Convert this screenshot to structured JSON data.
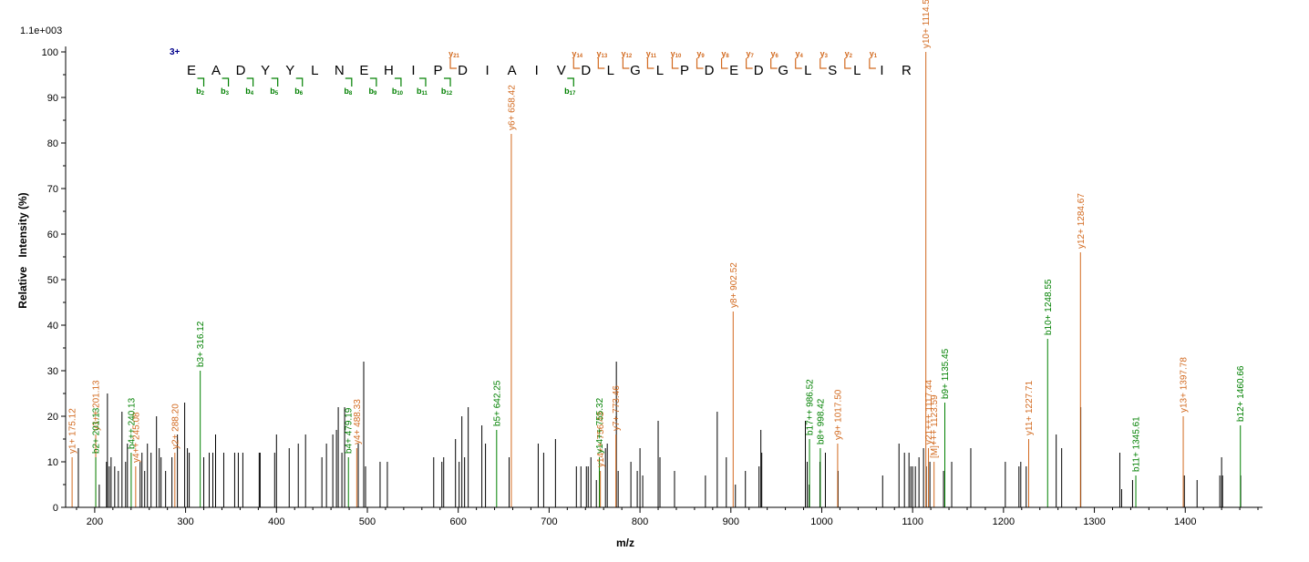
{
  "chart_data": {
    "type": "bar",
    "subtype": "mass-spectrum",
    "xlabel": "m/z",
    "ylabel": "Relative   Intensity (%)",
    "intensity_scale": "1.1e+003",
    "xlim": [
      168,
      1485
    ],
    "ylim": [
      0,
      100
    ],
    "x_ticks": [
      200,
      300,
      400,
      500,
      600,
      700,
      800,
      900,
      1000,
      1100,
      1200,
      1300,
      1400
    ],
    "y_ticks": [
      0,
      10,
      20,
      30,
      40,
      50,
      60,
      70,
      80,
      90,
      100
    ],
    "colors": {
      "y_ion": "#d2691e",
      "b_ion": "#008000",
      "unassigned": "#000000",
      "charge": "#00008b"
    },
    "sequence": [
      "E",
      "A",
      "D",
      "Y",
      "Y",
      "L",
      "N",
      "E",
      "H",
      "I",
      "P",
      "D",
      "I",
      "A",
      "I",
      "V",
      "D",
      "L",
      "G",
      "L",
      "P",
      "D",
      "E",
      "D",
      "G",
      "L",
      "S",
      "L",
      "I",
      "R"
    ],
    "charge_state": "3+",
    "y_ion_markers": [
      {
        "after": 11,
        "num": "21"
      },
      {
        "after": 16,
        "num": "14"
      },
      {
        "after": 17,
        "num": "13"
      },
      {
        "after": 18,
        "num": "12"
      },
      {
        "after": 19,
        "num": "11"
      },
      {
        "after": 20,
        "num": "10"
      },
      {
        "after": 21,
        "num": "9"
      },
      {
        "after": 22,
        "num": "8"
      },
      {
        "after": 23,
        "num": "7"
      },
      {
        "after": 24,
        "num": "6"
      },
      {
        "after": 25,
        "num": "4"
      },
      {
        "after": 26,
        "num": "3"
      },
      {
        "after": 27,
        "num": "2"
      },
      {
        "after": 28,
        "num": "1"
      }
    ],
    "b_ion_markers": [
      {
        "after": 1,
        "num": "2"
      },
      {
        "after": 2,
        "num": "3"
      },
      {
        "after": 3,
        "num": "4"
      },
      {
        "after": 4,
        "num": "5"
      },
      {
        "after": 5,
        "num": "6"
      },
      {
        "after": 7,
        "num": "8"
      },
      {
        "after": 8,
        "num": "9"
      },
      {
        "after": 9,
        "num": "10"
      },
      {
        "after": 10,
        "num": "11"
      },
      {
        "after": 11,
        "num": "12"
      },
      {
        "after": 16,
        "num": "17"
      }
    ],
    "peaks_y": [
      {
        "mz": 175.12,
        "i": 11,
        "label": "y1+ 175.12"
      },
      {
        "mz": 201.13,
        "i": 16,
        "label": "y3++ 201.13"
      },
      {
        "mz": 245.08,
        "i": 9,
        "label": "y4++ 245.08"
      },
      {
        "mz": 288.2,
        "i": 12,
        "label": "y2+ 288.20"
      },
      {
        "mz": 488.33,
        "i": 13,
        "label": "y4+ 488.33"
      },
      {
        "mz": 658.42,
        "i": 82,
        "label": "y6+ 658.42"
      },
      {
        "mz": 756.43,
        "i": 8,
        "label": "y14++ 756.43"
      },
      {
        "mz": 773.46,
        "i": 16,
        "label": "y7+ 773.46"
      },
      {
        "mz": 902.52,
        "i": 43,
        "label": "y8+ 902.52"
      },
      {
        "mz": 1017.5,
        "i": 14,
        "label": "y9+ 1017.50"
      },
      {
        "mz": 1114.56,
        "i": 100,
        "label": "y10+ 1114.56"
      },
      {
        "mz": 1117.44,
        "i": 13,
        "label": "y21+++ 1117.44"
      },
      {
        "mz": 1123.59,
        "i": 10,
        "label": "[M]+++ 1123.59"
      },
      {
        "mz": 1227.71,
        "i": 15,
        "label": "y11+ 1227.71"
      },
      {
        "mz": 1284.67,
        "i": 56,
        "label": "y12+ 1284.67"
      },
      {
        "mz": 1397.78,
        "i": 20,
        "label": "y13+ 1397.78"
      }
    ],
    "peaks_b": [
      {
        "mz": 201.13,
        "i": 11,
        "label": "b2+ 201.13"
      },
      {
        "mz": 240.13,
        "i": 12,
        "label": "b4++ 240.13"
      },
      {
        "mz": 316.12,
        "i": 30,
        "label": "b3+ 316.12"
      },
      {
        "mz": 479.19,
        "i": 11,
        "label": "b4+ 479.19"
      },
      {
        "mz": 642.25,
        "i": 17,
        "label": "b5+ 642.25"
      },
      {
        "mz": 755.32,
        "i": 11,
        "label": "y14++ 755.32"
      },
      {
        "mz": 986.52,
        "i": 15,
        "label": "b17++ 986.52"
      },
      {
        "mz": 998.42,
        "i": 13,
        "label": "b8+ 998.42"
      },
      {
        "mz": 1135.45,
        "i": 23,
        "label": "b9+ 1135.45"
      },
      {
        "mz": 1248.55,
        "i": 37,
        "label": "b10+ 1248.55"
      },
      {
        "mz": 1345.61,
        "i": 7,
        "label": "b11+ 1345.61"
      },
      {
        "mz": 1460.66,
        "i": 18,
        "label": "b12+ 1460.66"
      }
    ],
    "peaks_unassigned": [
      {
        "mz": 182,
        "i": 13
      },
      {
        "mz": 205,
        "i": 5
      },
      {
        "mz": 213,
        "i": 10
      },
      {
        "mz": 214,
        "i": 25
      },
      {
        "mz": 216,
        "i": 9
      },
      {
        "mz": 218,
        "i": 11
      },
      {
        "mz": 222,
        "i": 9
      },
      {
        "mz": 226,
        "i": 8
      },
      {
        "mz": 230,
        "i": 21
      },
      {
        "mz": 234,
        "i": 10
      },
      {
        "mz": 236,
        "i": 14
      },
      {
        "mz": 250,
        "i": 10
      },
      {
        "mz": 252,
        "i": 12
      },
      {
        "mz": 255,
        "i": 8
      },
      {
        "mz": 258,
        "i": 14
      },
      {
        "mz": 262,
        "i": 12
      },
      {
        "mz": 268,
        "i": 20
      },
      {
        "mz": 271,
        "i": 13
      },
      {
        "mz": 273,
        "i": 11
      },
      {
        "mz": 278,
        "i": 8
      },
      {
        "mz": 285,
        "i": 11
      },
      {
        "mz": 291,
        "i": 16
      },
      {
        "mz": 299,
        "i": 23
      },
      {
        "mz": 302,
        "i": 13
      },
      {
        "mz": 304,
        "i": 12
      },
      {
        "mz": 320,
        "i": 11
      },
      {
        "mz": 326,
        "i": 12
      },
      {
        "mz": 330,
        "i": 12
      },
      {
        "mz": 333,
        "i": 16
      },
      {
        "mz": 342,
        "i": 12
      },
      {
        "mz": 354,
        "i": 12
      },
      {
        "mz": 358,
        "i": 12
      },
      {
        "mz": 363,
        "i": 12
      },
      {
        "mz": 381,
        "i": 12
      },
      {
        "mz": 382,
        "i": 12
      },
      {
        "mz": 398,
        "i": 12
      },
      {
        "mz": 400,
        "i": 16
      },
      {
        "mz": 414,
        "i": 13
      },
      {
        "mz": 424,
        "i": 14
      },
      {
        "mz": 432,
        "i": 16
      },
      {
        "mz": 450,
        "i": 11
      },
      {
        "mz": 455,
        "i": 14
      },
      {
        "mz": 462,
        "i": 16
      },
      {
        "mz": 466,
        "i": 17
      },
      {
        "mz": 468,
        "i": 22
      },
      {
        "mz": 472,
        "i": 12
      },
      {
        "mz": 475,
        "i": 22
      },
      {
        "mz": 490,
        "i": 14
      },
      {
        "mz": 496,
        "i": 32
      },
      {
        "mz": 498,
        "i": 9
      },
      {
        "mz": 514,
        "i": 10
      },
      {
        "mz": 522,
        "i": 10
      },
      {
        "mz": 573,
        "i": 11
      },
      {
        "mz": 582,
        "i": 10
      },
      {
        "mz": 584,
        "i": 11
      },
      {
        "mz": 597,
        "i": 15
      },
      {
        "mz": 601,
        "i": 10
      },
      {
        "mz": 604,
        "i": 20
      },
      {
        "mz": 607,
        "i": 11
      },
      {
        "mz": 611,
        "i": 22
      },
      {
        "mz": 626,
        "i": 18
      },
      {
        "mz": 630,
        "i": 14
      },
      {
        "mz": 656,
        "i": 11
      },
      {
        "mz": 688,
        "i": 14
      },
      {
        "mz": 694,
        "i": 12
      },
      {
        "mz": 707,
        "i": 15
      },
      {
        "mz": 730,
        "i": 9
      },
      {
        "mz": 735,
        "i": 9
      },
      {
        "mz": 741,
        "i": 9
      },
      {
        "mz": 743,
        "i": 9
      },
      {
        "mz": 746,
        "i": 11
      },
      {
        "mz": 752,
        "i": 6
      },
      {
        "mz": 762,
        "i": 13
      },
      {
        "mz": 764,
        "i": 14
      },
      {
        "mz": 774,
        "i": 32
      },
      {
        "mz": 776,
        "i": 8
      },
      {
        "mz": 790,
        "i": 10
      },
      {
        "mz": 797,
        "i": 8
      },
      {
        "mz": 800,
        "i": 13
      },
      {
        "mz": 803,
        "i": 7
      },
      {
        "mz": 820,
        "i": 19
      },
      {
        "mz": 822,
        "i": 11
      },
      {
        "mz": 838,
        "i": 8
      },
      {
        "mz": 872,
        "i": 7
      },
      {
        "mz": 885,
        "i": 21
      },
      {
        "mz": 895,
        "i": 11
      },
      {
        "mz": 905,
        "i": 5
      },
      {
        "mz": 916,
        "i": 8
      },
      {
        "mz": 931,
        "i": 9
      },
      {
        "mz": 933,
        "i": 17
      },
      {
        "mz": 934,
        "i": 12
      },
      {
        "mz": 982,
        "i": 19
      },
      {
        "mz": 984,
        "i": 10
      },
      {
        "mz": 986,
        "i": 5
      },
      {
        "mz": 998,
        "i": 10
      },
      {
        "mz": 1004,
        "i": 12
      },
      {
        "mz": 1018,
        "i": 8
      },
      {
        "mz": 1067,
        "i": 7
      },
      {
        "mz": 1085,
        "i": 14
      },
      {
        "mz": 1091,
        "i": 12
      },
      {
        "mz": 1096,
        "i": 12
      },
      {
        "mz": 1098,
        "i": 9
      },
      {
        "mz": 1100,
        "i": 9
      },
      {
        "mz": 1103,
        "i": 9
      },
      {
        "mz": 1107,
        "i": 11
      },
      {
        "mz": 1112,
        "i": 13
      },
      {
        "mz": 1115,
        "i": 9
      },
      {
        "mz": 1119,
        "i": 10
      },
      {
        "mz": 1134,
        "i": 8
      },
      {
        "mz": 1143,
        "i": 10
      },
      {
        "mz": 1164,
        "i": 13
      },
      {
        "mz": 1202,
        "i": 10
      },
      {
        "mz": 1217,
        "i": 9
      },
      {
        "mz": 1219,
        "i": 10
      },
      {
        "mz": 1225,
        "i": 9
      },
      {
        "mz": 1258,
        "i": 16
      },
      {
        "mz": 1264,
        "i": 13
      },
      {
        "mz": 1285,
        "i": 22
      },
      {
        "mz": 1328,
        "i": 12
      },
      {
        "mz": 1330,
        "i": 4
      },
      {
        "mz": 1342,
        "i": 6
      },
      {
        "mz": 1399,
        "i": 7
      },
      {
        "mz": 1413,
        "i": 6
      },
      {
        "mz": 1438,
        "i": 7
      },
      {
        "mz": 1440,
        "i": 11
      },
      {
        "mz": 1441,
        "i": 7
      },
      {
        "mz": 1461,
        "i": 7
      }
    ]
  }
}
